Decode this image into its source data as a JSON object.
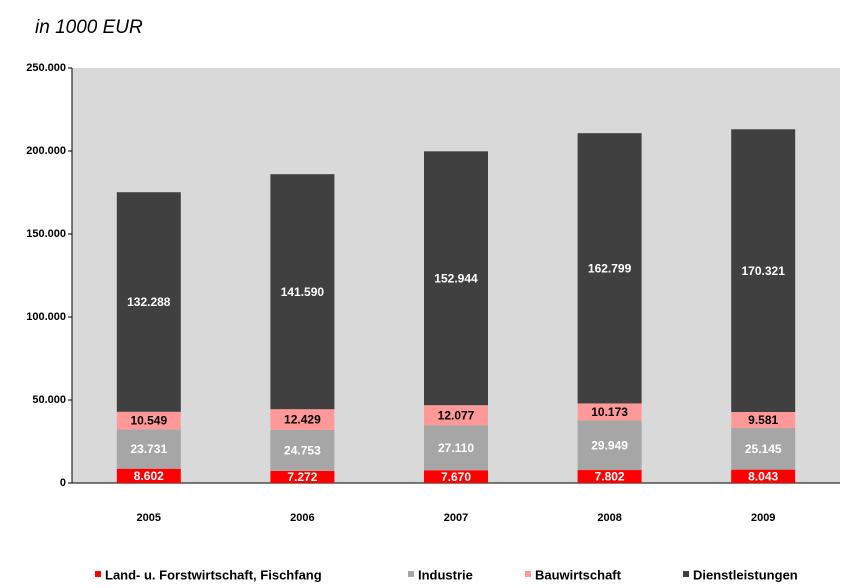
{
  "chart_data": {
    "type": "stacked_bar",
    "subtitle": "in 1000 EUR",
    "categories": [
      "2005",
      "2006",
      "2007",
      "2008",
      "2009"
    ],
    "series": [
      {
        "name": "Land- u. Forstwirtschaft, Fischfang",
        "color": "#ff0000",
        "label_color": "#ffffff",
        "values": [
          8602,
          7272,
          7670,
          7802,
          8043
        ],
        "value_labels": [
          "8.602",
          "7.272",
          "7.670",
          "7.802",
          "8.043"
        ]
      },
      {
        "name": "Industrie",
        "color": "#a6a6a6",
        "label_color": "#ffffff",
        "values": [
          23731,
          24753,
          27110,
          29949,
          25145
        ],
        "value_labels": [
          "23.731",
          "24.753",
          "27.110",
          "29.949",
          "25.145"
        ]
      },
      {
        "name": "Bauwirtschaft",
        "color": "#ff9999",
        "label_color": "#000000",
        "values": [
          10549,
          12429,
          12077,
          10173,
          9581
        ],
        "value_labels": [
          "10.549",
          "12.429",
          "12.077",
          "10.173",
          "9.581"
        ]
      },
      {
        "name": "Dienstleistungen",
        "color": "#404040",
        "label_color": "#ffffff",
        "values": [
          132288,
          141590,
          152944,
          162799,
          170321
        ],
        "value_labels": [
          "132.288",
          "141.590",
          "152.944",
          "162.799",
          "170.321"
        ]
      }
    ],
    "ylim": [
      0,
      250000
    ],
    "yticks": [
      0,
      {
        "value": 50000,
        "label": "50.000"
      },
      {
        "value": 100000,
        "label": "100.000"
      },
      {
        "value": 150000,
        "label": "150.000"
      },
      {
        "value": 200000,
        "label": "200.000"
      },
      {
        "value": 250000,
        "label": "250.000"
      }
    ],
    "legend": "bottom"
  }
}
